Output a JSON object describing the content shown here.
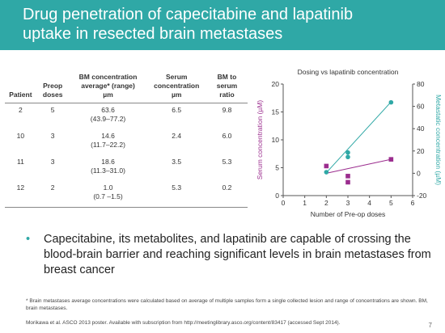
{
  "slide": {
    "title_line1": "Drug penetration of capecitabine and lapatinib",
    "title_line2": "uptake in resected brain metastases",
    "bullet": "Capecitabine, its metabolites, and lapatinib are capable of crossing the blood-brain barrier and reaching significant levels in brain metastases from breast cancer",
    "footnote": "* Brain metastases average concentrations were calculated based on average of multiple samples form a single collected lesion and range of concentrations are shown. BM, brain metastases.",
    "citation": "Morikawa et al. ASCO 2013 poster. Available with subscription from http://meetinglibrary.asco.org/content/83417 (accessed Sept 2014).",
    "page_number": "7"
  },
  "table": {
    "headers": [
      {
        "line1": "Patient",
        "line2": "",
        "line3": ""
      },
      {
        "line1": "Preop",
        "line2": "doses",
        "line3": ""
      },
      {
        "line1": "BM concentration",
        "line2": "average* (range)",
        "line3": "µm"
      },
      {
        "line1": "Serum",
        "line2": "concentration",
        "line3": "µm"
      },
      {
        "line1": "BM to",
        "line2": "serum",
        "line3": "ratio"
      }
    ],
    "rows": [
      {
        "patient": "2",
        "doses": "5",
        "bm": "63.6",
        "bm_range": "(43.9–77.2)",
        "serum": "6.5",
        "ratio": "9.8"
      },
      {
        "patient": "10",
        "doses": "3",
        "bm": "14.6",
        "bm_range": "(11.7–22.2)",
        "serum": "2.4",
        "ratio": "6.0"
      },
      {
        "patient": "11",
        "doses": "3",
        "bm": "18.6",
        "bm_range": "(11.3–31.0)",
        "serum": "3.5",
        "ratio": "5.3"
      },
      {
        "patient": "12",
        "doses": "2",
        "bm": "1.0",
        "bm_range": "(0.7 –1.5)",
        "serum": "5.3",
        "ratio": "0.2"
      }
    ]
  },
  "chart_data": {
    "type": "scatter",
    "title": "Dosing vs lapatinib concentration",
    "xlabel": "Number of Pre-op doses",
    "ylabel": "Serum concentration (µM)",
    "y2label": "Metastatic concentration (µM)",
    "xlim": [
      0,
      6
    ],
    "ylim": [
      0,
      20
    ],
    "y2lim": [
      -20,
      80
    ],
    "x_ticks": [
      "0",
      "1",
      "2",
      "3",
      "4",
      "5",
      "6"
    ],
    "y_ticks": [
      "0",
      "5",
      "10",
      "15",
      "20"
    ],
    "y2_ticks": [
      "-20",
      "0",
      "20",
      "40",
      "60",
      "80"
    ],
    "grid": false,
    "series": [
      {
        "axis": "left",
        "color": "#9b2d8e",
        "marker": "square",
        "points": [
          {
            "x": 2,
            "y": 5.3
          },
          {
            "x": 3,
            "y": 2.4
          },
          {
            "x": 3,
            "y": 3.5
          },
          {
            "x": 5,
            "y": 6.5
          }
        ],
        "trend": [
          {
            "x": 2,
            "y": 4.0
          },
          {
            "x": 5,
            "y": 6.5
          }
        ]
      },
      {
        "axis": "right",
        "color": "#2fa8a6",
        "marker": "circle",
        "points": [
          {
            "x": 2,
            "y": 1.0
          },
          {
            "x": 3,
            "y": 14.6
          },
          {
            "x": 3,
            "y": 18.6
          },
          {
            "x": 5,
            "y": 63.6
          }
        ],
        "trend": [
          {
            "x": 2,
            "y": 0.5
          },
          {
            "x": 5,
            "y": 64.0
          }
        ]
      }
    ]
  }
}
